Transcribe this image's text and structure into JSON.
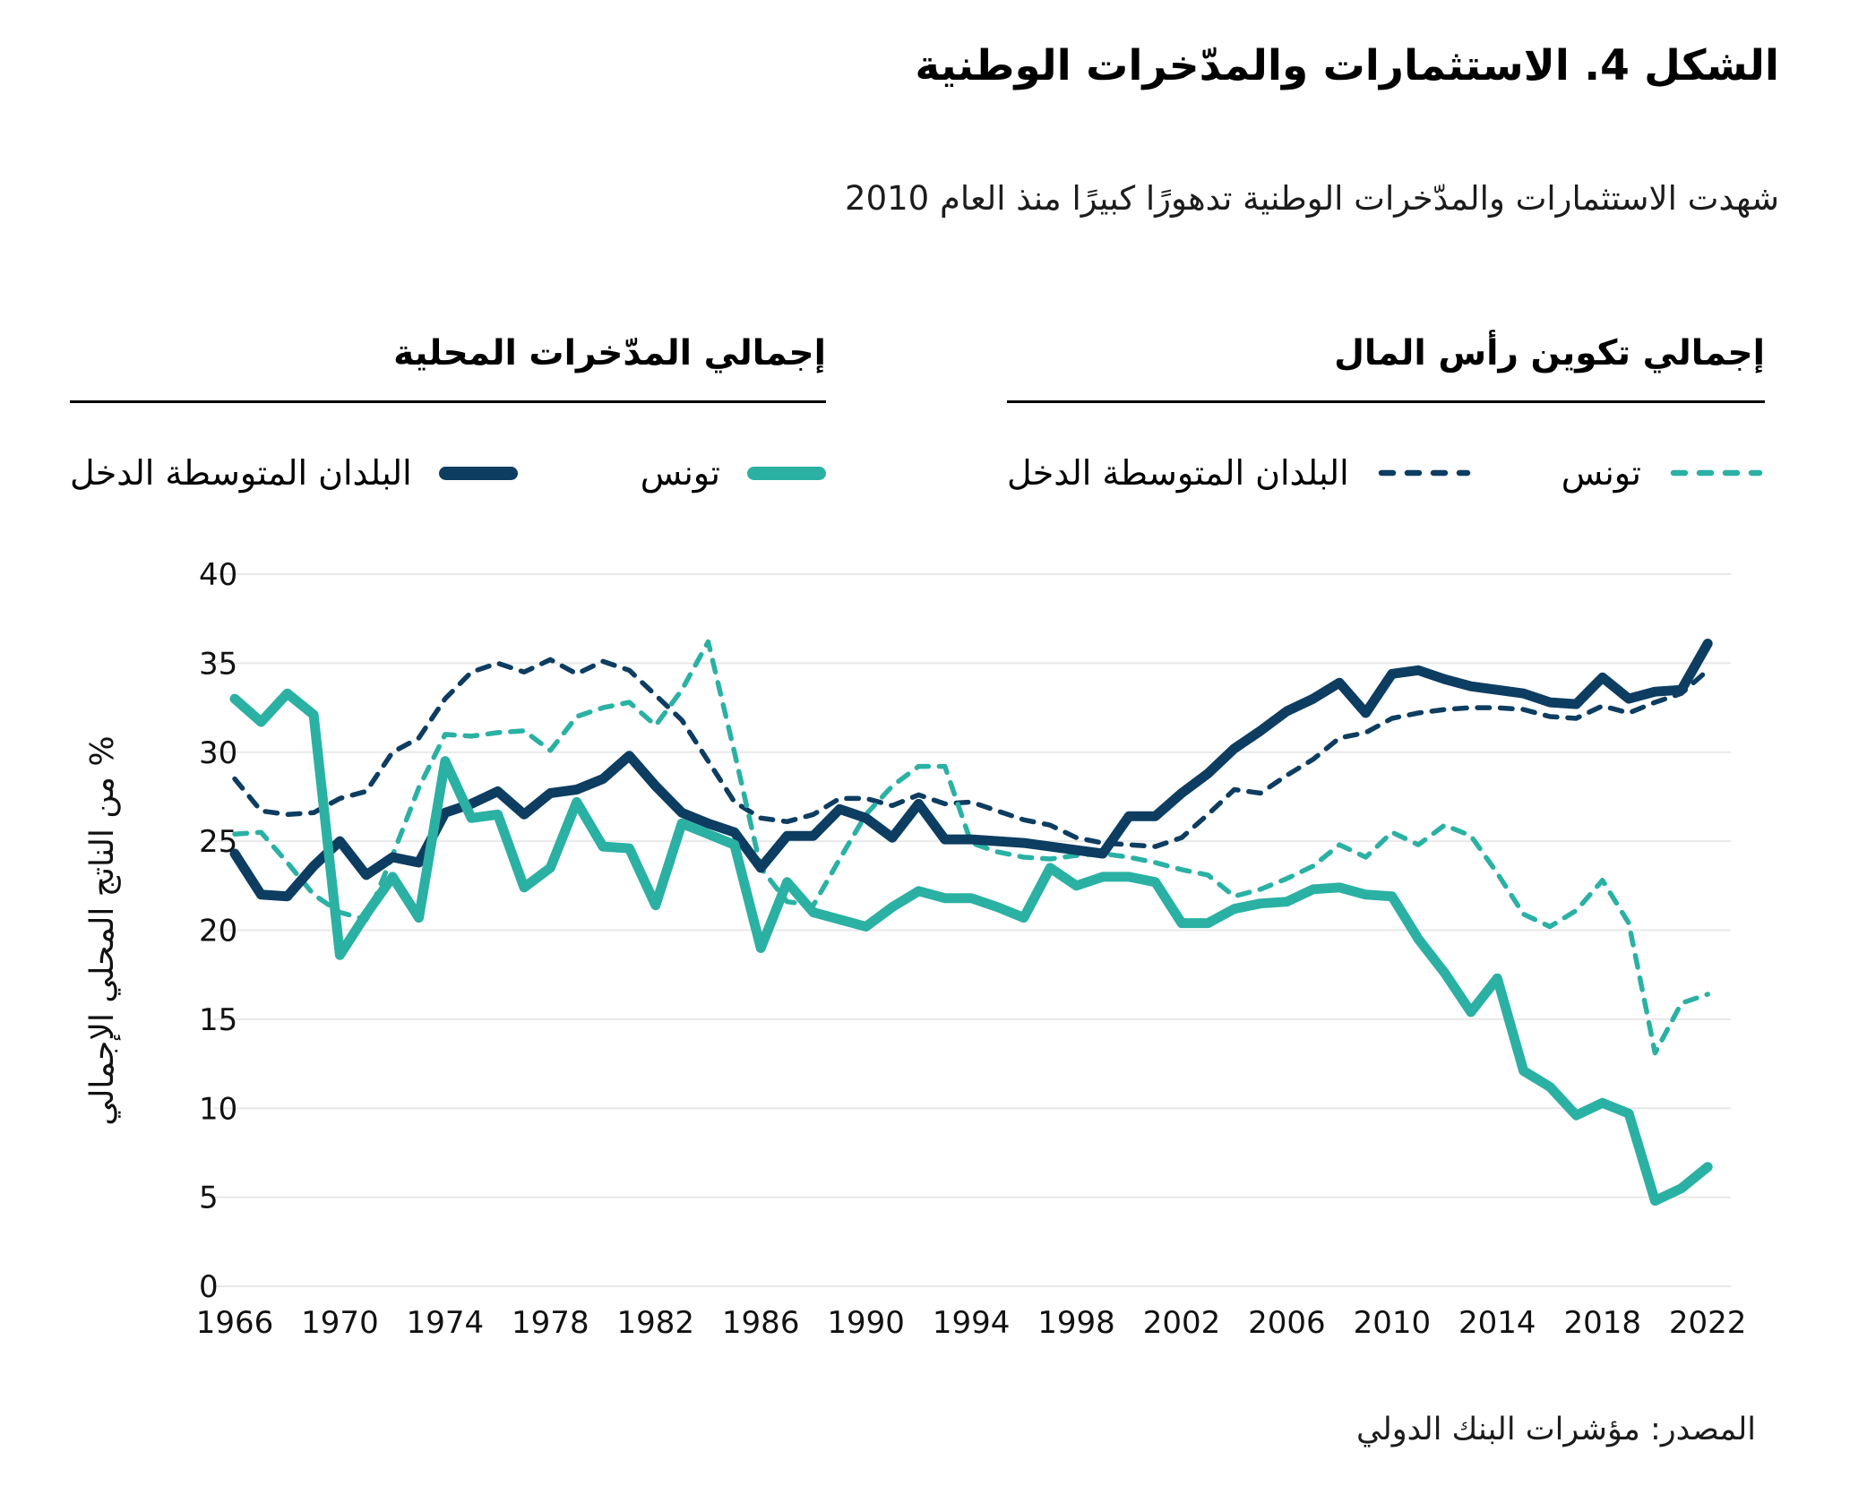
{
  "header": {
    "title": "الشكل 4. الاستثمارات والمدّخرات الوطنية",
    "subtitle": "شهدت الاستثمارات والمدّخرات الوطنية تدهورًا كبيرًا منذ العام 2010"
  },
  "colors": {
    "teal": "#2AB1A4",
    "navy": "#0D3D61",
    "grid": "#e8e8e8",
    "axis_text": "#111111",
    "rule": "#000000"
  },
  "legend": {
    "groups": [
      {
        "id": "capital",
        "title": "إجمالي تكوين رأس المال",
        "items": [
          {
            "label": "تونس",
            "color": "#2AB1A4",
            "style": "dashed"
          },
          {
            "label": "البلدان المتوسطة الدخل",
            "color": "#0D3D61",
            "style": "dashed"
          }
        ]
      },
      {
        "id": "savings",
        "title": "إجمالي المدّخرات المحلية",
        "items": [
          {
            "label": "تونس",
            "color": "#2AB1A4",
            "style": "solid"
          },
          {
            "label": "البلدان المتوسطة الدخل",
            "color": "#0D3D61",
            "style": "solid"
          }
        ]
      }
    ]
  },
  "chart_data": {
    "type": "line",
    "title": "",
    "xlabel": "",
    "ylabel": "% من الناتج المحلي الإجمالي",
    "ylim": [
      0,
      40
    ],
    "yticks": [
      0,
      5,
      10,
      15,
      20,
      25,
      30,
      35,
      40
    ],
    "xticks": [
      1966,
      1970,
      1974,
      1978,
      1982,
      1986,
      1990,
      1994,
      1998,
      2002,
      2006,
      2010,
      2014,
      2018,
      2022
    ],
    "grid": true,
    "legend_position": "top",
    "x": [
      1966,
      1967,
      1968,
      1969,
      1970,
      1971,
      1972,
      1973,
      1974,
      1975,
      1976,
      1977,
      1978,
      1979,
      1980,
      1981,
      1982,
      1983,
      1984,
      1985,
      1986,
      1987,
      1988,
      1989,
      1990,
      1991,
      1992,
      1993,
      1994,
      1995,
      1996,
      1997,
      1998,
      1999,
      2000,
      2001,
      2002,
      2003,
      2004,
      2005,
      2006,
      2007,
      2008,
      2009,
      2010,
      2011,
      2012,
      2013,
      2014,
      2015,
      2016,
      2017,
      2018,
      2019,
      2020,
      2021,
      2022
    ],
    "series": [
      {
        "id": "mic-capital-formation",
        "name": "البلدان المتوسطة الدخل",
        "group": "إجمالي تكوين رأس المال",
        "style": "dashed",
        "color": "#0D3D61",
        "values": [
          28.5,
          26.7,
          26.5,
          26.6,
          27.4,
          27.8,
          30.0,
          30.8,
          33.0,
          34.5,
          35.0,
          34.5,
          35.2,
          34.4,
          35.1,
          34.6,
          33.2,
          31.8,
          29.5,
          27.2,
          26.3,
          26.1,
          26.5,
          27.4,
          27.4,
          27.0,
          27.6,
          27.1,
          27.2,
          26.7,
          26.2,
          25.9,
          25.2,
          24.9,
          24.8,
          24.7,
          25.2,
          26.5,
          27.9,
          27.7,
          28.7,
          29.6,
          30.8,
          31.1,
          31.9,
          32.2,
          32.4,
          32.5,
          32.5,
          32.4,
          32.0,
          31.9,
          32.6,
          32.2,
          32.8,
          33.3,
          34.6
        ]
      },
      {
        "id": "tunisia-capital-formation",
        "name": "تونس",
        "group": "إجمالي تكوين رأس المال",
        "style": "dashed",
        "color": "#2AB1A4",
        "values": [
          25.4,
          25.5,
          23.8,
          22.0,
          21.0,
          20.6,
          24.2,
          28.0,
          31.0,
          30.9,
          31.1,
          31.2,
          30.1,
          32.0,
          32.5,
          32.8,
          31.5,
          33.5,
          36.2,
          30.0,
          23.5,
          21.6,
          21.4,
          24.0,
          26.5,
          28.1,
          29.2,
          29.2,
          24.9,
          24.4,
          24.1,
          24.0,
          24.2,
          24.3,
          24.1,
          23.8,
          23.4,
          23.1,
          21.9,
          22.3,
          22.9,
          23.6,
          24.8,
          24.1,
          25.5,
          24.8,
          25.9,
          25.3,
          23.2,
          20.9,
          20.2,
          21.1,
          22.8,
          20.4,
          13.1,
          15.9,
          16.4
        ]
      },
      {
        "id": "mic-domestic-savings",
        "name": "البلدان المتوسطة الدخل",
        "group": "إجمالي المدّخرات المحلية",
        "style": "solid",
        "color": "#0D3D61",
        "values": [
          24.3,
          22.0,
          21.9,
          23.6,
          25.0,
          23.1,
          24.1,
          23.8,
          26.6,
          27.1,
          27.8,
          26.5,
          27.7,
          27.9,
          28.5,
          29.8,
          28.1,
          26.6,
          26.0,
          25.5,
          23.5,
          25.3,
          25.3,
          26.8,
          26.3,
          25.2,
          27.1,
          25.1,
          25.1,
          25.0,
          24.9,
          24.7,
          24.5,
          24.3,
          26.4,
          26.4,
          27.7,
          28.8,
          30.2,
          31.2,
          32.3,
          33.0,
          33.9,
          32.2,
          34.4,
          34.6,
          34.1,
          33.7,
          33.5,
          33.3,
          32.8,
          32.7,
          34.2,
          33.0,
          33.4,
          33.5,
          36.1
        ]
      },
      {
        "id": "tunisia-domestic-savings",
        "name": "تونس",
        "group": "إجمالي المدّخرات المحلية",
        "style": "solid",
        "color": "#2AB1A4",
        "values": [
          33.0,
          31.7,
          33.3,
          32.1,
          18.6,
          20.9,
          23.0,
          20.7,
          29.5,
          26.3,
          26.5,
          22.4,
          23.5,
          27.2,
          24.7,
          24.6,
          21.4,
          26.0,
          25.4,
          24.8,
          19.0,
          22.7,
          21.0,
          20.6,
          20.2,
          21.3,
          22.2,
          21.8,
          21.8,
          21.3,
          20.7,
          23.5,
          22.5,
          23.0,
          23.0,
          22.7,
          20.4,
          20.4,
          21.2,
          21.5,
          21.6,
          22.3,
          22.4,
          22.0,
          21.9,
          19.5,
          17.6,
          15.4,
          17.3,
          12.1,
          11.2,
          9.6,
          10.3,
          9.7,
          4.8,
          5.5,
          6.7
        ]
      }
    ]
  },
  "footer": {
    "source": "المصدر: مؤشرات البنك الدولي"
  }
}
